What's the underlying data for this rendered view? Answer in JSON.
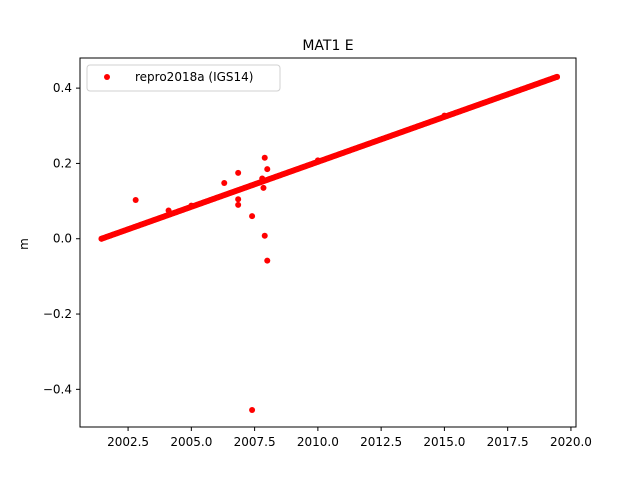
{
  "chart_data": {
    "type": "scatter",
    "title": "MAT1 E",
    "xlabel": "",
    "ylabel": "m",
    "xlim": [
      2000.6,
      2020.2
    ],
    "ylim": [
      -0.5,
      0.48
    ],
    "x_ticks": [
      {
        "value": 2002.5,
        "label": "2002.5"
      },
      {
        "value": 2005.0,
        "label": "2005.0"
      },
      {
        "value": 2007.5,
        "label": "2007.5"
      },
      {
        "value": 2010.0,
        "label": "2010.0"
      },
      {
        "value": 2012.5,
        "label": "2012.5"
      },
      {
        "value": 2015.0,
        "label": "2015.0"
      },
      {
        "value": 2017.5,
        "label": "2017.5"
      },
      {
        "value": 2020.0,
        "label": "2020.0"
      }
    ],
    "y_ticks": [
      {
        "value": 0.4,
        "label": "0.4"
      },
      {
        "value": 0.2,
        "label": "0.2"
      },
      {
        "value": 0.0,
        "label": "0.0"
      },
      {
        "value": -0.2,
        "label": "−0.2"
      },
      {
        "value": -0.4,
        "label": "−0.4"
      }
    ],
    "grid": false,
    "legend_position": "top-left",
    "series": [
      {
        "name": "repro2018a (IGS14)",
        "color": "#ff0000",
        "marker": "circle",
        "trend": {
          "x_start": 2001.45,
          "y_start": 0.0,
          "x_end": 2019.45,
          "y_end": 0.43,
          "step": 0.05
        },
        "points": [
          {
            "x": 2001.45,
            "y": 0.0
          },
          {
            "x": 2005.0,
            "y": 0.088
          },
          {
            "x": 2010.0,
            "y": 0.208
          },
          {
            "x": 2015.0,
            "y": 0.327
          },
          {
            "x": 2019.45,
            "y": 0.43
          },
          {
            "x": 2002.8,
            "y": 0.103
          },
          {
            "x": 2004.1,
            "y": 0.075
          },
          {
            "x": 2006.3,
            "y": 0.148
          },
          {
            "x": 2006.85,
            "y": 0.175
          },
          {
            "x": 2006.85,
            "y": 0.105
          },
          {
            "x": 2006.85,
            "y": 0.09
          },
          {
            "x": 2007.4,
            "y": 0.06
          },
          {
            "x": 2007.4,
            "y": -0.455
          },
          {
            "x": 2007.8,
            "y": 0.16
          },
          {
            "x": 2007.85,
            "y": 0.135
          },
          {
            "x": 2007.9,
            "y": 0.215
          },
          {
            "x": 2007.9,
            "y": 0.008
          },
          {
            "x": 2008.0,
            "y": 0.185
          },
          {
            "x": 2008.0,
            "y": -0.058
          }
        ]
      }
    ]
  }
}
